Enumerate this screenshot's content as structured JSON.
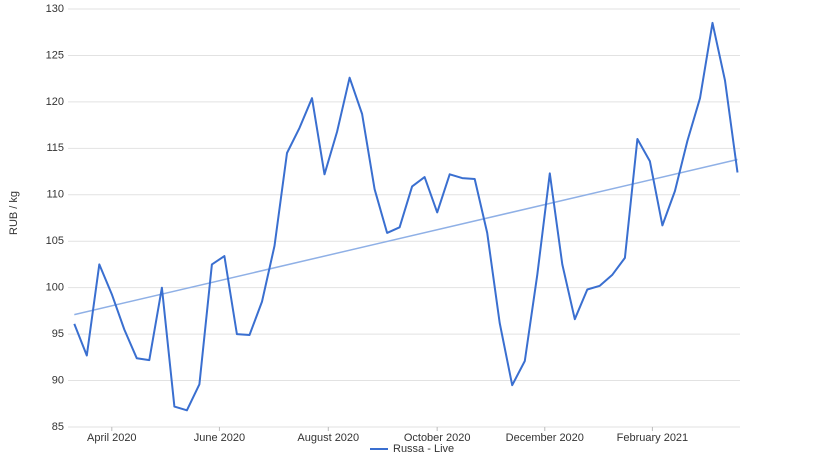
{
  "chart_data": {
    "type": "line",
    "y_label": "RUB / kg",
    "x": [
      0,
      1,
      2,
      3,
      4,
      5,
      6,
      7,
      8,
      9,
      10,
      11,
      12,
      13,
      14,
      15,
      16,
      17,
      18,
      19,
      20,
      21,
      22,
      23,
      24,
      25,
      26,
      27,
      28,
      29,
      30,
      31,
      32,
      33,
      34,
      35,
      36,
      37,
      38,
      39,
      40,
      41,
      42,
      43,
      44,
      45,
      46,
      47,
      48,
      49,
      50,
      51,
      52,
      53
    ],
    "series": [
      {
        "name": "Russa - Live",
        "color": "#3a6fd0",
        "values": [
          96.1,
          92.7,
          102.5,
          99.3,
          95.5,
          92.4,
          92.2,
          100.0,
          87.2,
          86.8,
          89.6,
          102.5,
          103.4,
          95.0,
          94.9,
          98.5,
          104.5,
          114.5,
          117.2,
          120.4,
          112.2,
          116.8,
          122.6,
          118.7,
          110.6,
          105.9,
          106.5,
          110.9,
          111.9,
          108.1,
          112.2,
          111.8,
          111.7,
          105.9,
          96.2,
          89.5,
          92.1,
          101.4,
          112.3,
          102.5,
          96.6,
          99.8,
          100.2,
          101.4,
          103.2,
          116.0,
          113.6,
          106.7,
          110.4,
          115.8,
          120.4,
          128.5,
          122.3,
          112.4
        ]
      }
    ],
    "trendline": {
      "color": "#8fb0e6",
      "x": [
        0,
        53
      ],
      "values": [
        97.1,
        113.8
      ]
    },
    "xlim": [
      -0.5,
      53.2
    ],
    "xticks": [
      {
        "value": 3,
        "label": "April 2020"
      },
      {
        "value": 11.6,
        "label": "June 2020"
      },
      {
        "value": 20.3,
        "label": "August 2020"
      },
      {
        "value": 29,
        "label": "October 2020"
      },
      {
        "value": 37.6,
        "label": "December 2020"
      },
      {
        "value": 46.2,
        "label": "February 2021"
      }
    ],
    "ylim": [
      85,
      130
    ],
    "yticks": [
      85,
      90,
      95,
      100,
      105,
      110,
      115,
      120,
      125,
      130
    ],
    "grid": true
  }
}
